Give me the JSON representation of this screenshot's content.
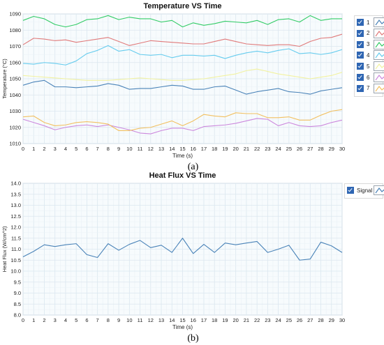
{
  "chart_data": [
    {
      "type": "line",
      "title": "Temperature VS Time",
      "xlabel": "Time (s)",
      "ylabel": "Temperature (°C)",
      "xlim": [
        0,
        30
      ],
      "ylim": [
        1010,
        1090
      ],
      "x_ticks": [
        0,
        1,
        2,
        3,
        4,
        5,
        6,
        7,
        8,
        9,
        10,
        11,
        12,
        13,
        14,
        15,
        16,
        17,
        18,
        19,
        20,
        21,
        22,
        23,
        24,
        25,
        26,
        27,
        28,
        29,
        30
      ],
      "y_ticks": [
        1010,
        1020,
        1030,
        1040,
        1050,
        1060,
        1070,
        1080,
        1090
      ],
      "grid": true,
      "legend_position": "right",
      "caption": "(a)",
      "x": [
        0,
        1,
        2,
        3,
        4,
        5,
        6,
        7,
        8,
        9,
        10,
        11,
        12,
        13,
        14,
        15,
        16,
        17,
        18,
        19,
        20,
        21,
        22,
        23,
        24,
        25,
        26,
        27,
        28,
        29,
        30
      ],
      "series": [
        {
          "name": "1",
          "color": "#4a83b8",
          "values": [
            1046,
            1048,
            1049,
            1045,
            1045,
            1044.5,
            1045,
            1045.5,
            1047,
            1046,
            1043.5,
            1044,
            1044,
            1045,
            1046,
            1045.5,
            1043.5,
            1043.5,
            1045,
            1045.5,
            1043,
            1040.5,
            1042,
            1043,
            1044,
            1042,
            1041.5,
            1040.5,
            1042.5,
            1043.5,
            1044.5
          ]
        },
        {
          "name": "2",
          "color": "#e07a7a",
          "values": [
            1071,
            1075,
            1074.5,
            1073.5,
            1074,
            1072.5,
            1073.5,
            1074.5,
            1075.5,
            1073,
            1070.5,
            1072,
            1073.5,
            1073,
            1072.5,
            1072,
            1071.5,
            1071.5,
            1073,
            1074.5,
            1073,
            1071.5,
            1071,
            1070.5,
            1071,
            1071,
            1070,
            1073,
            1075,
            1075.5,
            1077.5
          ]
        },
        {
          "name": "3",
          "color": "#33cc66",
          "values": [
            1086,
            1088.5,
            1087,
            1083.5,
            1082,
            1083.5,
            1086.5,
            1087,
            1089,
            1086.5,
            1088,
            1087,
            1087,
            1085,
            1086,
            1082,
            1084.5,
            1083,
            1084,
            1085.5,
            1085,
            1084.5,
            1086,
            1083.5,
            1086.5,
            1087,
            1085,
            1089,
            1086,
            1087,
            1087
          ]
        },
        {
          "name": "4",
          "color": "#66ccee",
          "values": [
            1059.5,
            1059,
            1060,
            1059.5,
            1058.5,
            1061,
            1065.5,
            1067.5,
            1070.5,
            1067,
            1068,
            1065,
            1064.5,
            1065,
            1063,
            1064.5,
            1064.5,
            1064,
            1064.5,
            1062.5,
            1064.5,
            1066,
            1067,
            1066,
            1067.5,
            1068.5,
            1065.5,
            1066,
            1065,
            1066,
            1068
          ]
        },
        {
          "name": "5",
          "color": "#f2f2a0",
          "values": [
            1052,
            1051.5,
            1051,
            1050.5,
            1050,
            1049.5,
            1049,
            1049,
            1049,
            1049.5,
            1050,
            1050.5,
            1050,
            1049.5,
            1049,
            1049,
            1049.5,
            1050,
            1051,
            1052,
            1053,
            1055,
            1056,
            1054.5,
            1053,
            1052,
            1051,
            1050,
            1051,
            1052,
            1054
          ]
        },
        {
          "name": "6",
          "color": "#cc88dd",
          "values": [
            1025,
            1023,
            1021,
            1018.5,
            1020,
            1021,
            1021.5,
            1020.5,
            1021.5,
            1020,
            1018.5,
            1016.5,
            1016,
            1018,
            1019.5,
            1019.5,
            1018,
            1020.5,
            1021,
            1021.5,
            1022.5,
            1024,
            1025.5,
            1025,
            1021,
            1023,
            1021,
            1020.5,
            1021,
            1023,
            1024.5
          ]
        },
        {
          "name": "7",
          "color": "#f2c060",
          "values": [
            1026.5,
            1027,
            1023,
            1021,
            1021.5,
            1023,
            1023.5,
            1023,
            1022,
            1018,
            1018,
            1019.5,
            1020,
            1022,
            1024,
            1021,
            1024,
            1028,
            1027,
            1026.5,
            1029,
            1028.5,
            1028.5,
            1026,
            1026,
            1026.5,
            1024.5,
            1024.5,
            1027.5,
            1030,
            1031
          ]
        }
      ]
    },
    {
      "type": "line",
      "title": "Heat Flux VS Time",
      "xlabel": "Time (s)",
      "ylabel": "Heat Flux (W/cm^2)",
      "xlim": [
        0,
        30
      ],
      "ylim": [
        8.0,
        14.0
      ],
      "x_ticks": [
        0,
        1,
        2,
        3,
        4,
        5,
        6,
        7,
        8,
        9,
        10,
        11,
        12,
        13,
        14,
        15,
        16,
        17,
        18,
        19,
        20,
        21,
        22,
        23,
        24,
        25,
        26,
        27,
        28,
        29,
        30
      ],
      "y_ticks": [
        "8.0",
        "8.5",
        "9.0",
        "9.5",
        "10.0",
        "10.5",
        "11.0",
        "11.5",
        "12.0",
        "12.5",
        "13.0",
        "13.5",
        "14.0"
      ],
      "grid": true,
      "legend_position": "right",
      "caption": "(b)",
      "x": [
        0,
        1,
        2,
        3,
        4,
        5,
        6,
        7,
        8,
        9,
        10,
        11,
        12,
        13,
        14,
        15,
        16,
        17,
        18,
        19,
        20,
        21,
        22,
        23,
        24,
        25,
        26,
        27,
        28,
        29,
        30
      ],
      "series": [
        {
          "name": "Signal",
          "color": "#4a83b8",
          "values": [
            10.65,
            10.9,
            11.2,
            11.12,
            11.2,
            11.25,
            10.75,
            10.62,
            11.25,
            10.95,
            11.22,
            11.4,
            11.07,
            11.18,
            10.85,
            11.5,
            10.8,
            11.22,
            10.85,
            11.28,
            11.2,
            11.28,
            11.35,
            10.85,
            11.0,
            11.18,
            10.5,
            10.55,
            11.32,
            11.15,
            10.85
          ]
        }
      ]
    }
  ]
}
